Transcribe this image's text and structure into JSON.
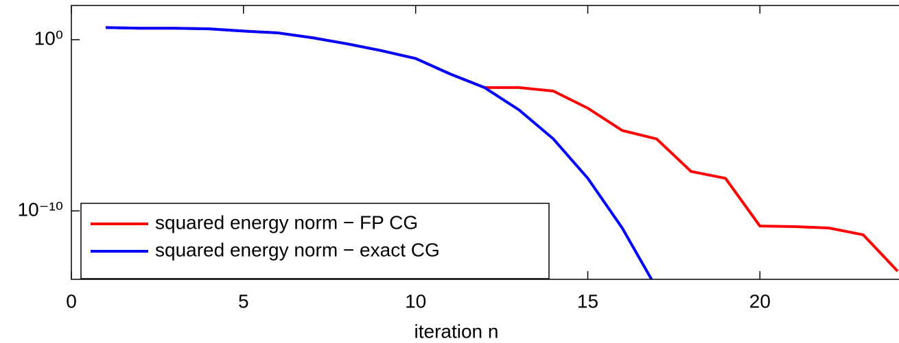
{
  "chart_data": {
    "type": "line",
    "x_label": "iteration n",
    "log_y": true,
    "legend": "lower left",
    "x": [
      1,
      2,
      3,
      4,
      5,
      6,
      7,
      8,
      9,
      10,
      11,
      12,
      13,
      14,
      15,
      16,
      17,
      18,
      19,
      20,
      21,
      22,
      23,
      24
    ],
    "series": [
      {
        "name": "squared energy norm − FP CG",
        "color": "#ff0000",
        "values": [
          5.1,
          4.7,
          4.7,
          4.3,
          3.2,
          2.5,
          1.3,
          0.58,
          0.23,
          0.08,
          0.01,
          0.0016,
          0.0016,
          0.001,
          0.0001,
          5e-06,
          1.6e-06,
          2e-08,
          8e-09,
          1.3e-11,
          1.2e-11,
          1e-11,
          4e-12,
          3e-14
        ]
      },
      {
        "name": "squared energy norm − exact CG",
        "color": "#0000ff",
        "values": [
          5.1,
          4.7,
          4.7,
          4.3,
          3.2,
          2.5,
          1.3,
          0.58,
          0.23,
          0.08,
          0.01,
          0.0016,
          8e-05,
          1.6e-06,
          8e-09,
          1e-11,
          3e-15,
          null,
          null,
          null,
          null,
          null,
          null,
          null
        ]
      }
    ],
    "xlim": [
      0,
      24
    ],
    "xticks": [
      0,
      5,
      10,
      15,
      20
    ],
    "ylim": [
      1e-14,
      100
    ],
    "yticks": [
      {
        "value": 1,
        "label": "10⁰"
      },
      {
        "value": 1e-10,
        "label": "10⁻¹⁰"
      }
    ]
  }
}
